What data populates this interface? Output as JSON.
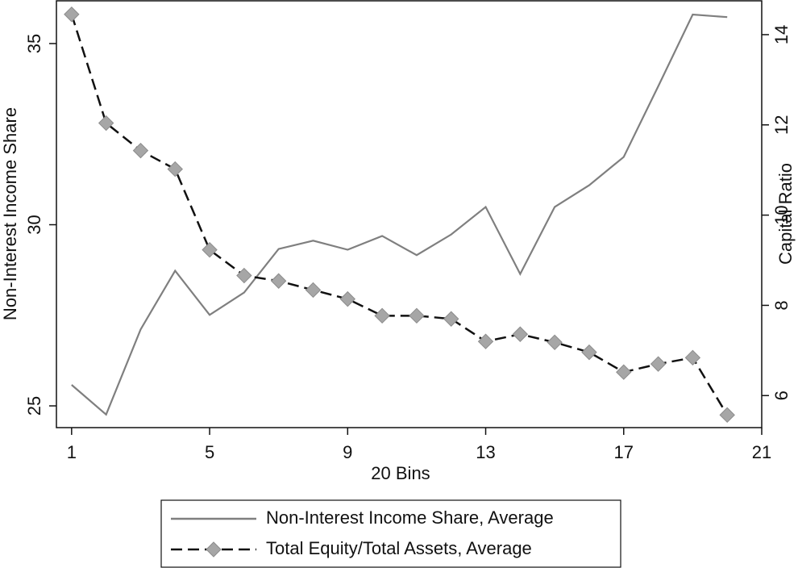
{
  "chart_data": {
    "type": "line",
    "xlabel": "20 Bins",
    "ylabel": "Non-Interest Income Share",
    "y2label": "Capital Ratio",
    "x": [
      1,
      2,
      3,
      4,
      5,
      6,
      7,
      8,
      9,
      10,
      11,
      12,
      13,
      14,
      15,
      16,
      17,
      18,
      19,
      20
    ],
    "xlim": [
      0.56,
      21
    ],
    "xticks": [
      1,
      5,
      9,
      13,
      17,
      21
    ],
    "ylim": [
      24.4,
      36.18
    ],
    "yticks": [
      25,
      30,
      35
    ],
    "y2lim": [
      5.29,
      14.75
    ],
    "y2ticks": [
      6,
      8,
      10,
      12,
      14
    ],
    "legend": "bottom",
    "series": [
      {
        "name": "Non-Interest Income Share, Average",
        "color": "#7f7f7f",
        "dashed": false,
        "marker": "none",
        "values": [
          25.58,
          24.76,
          27.11,
          28.73,
          27.51,
          28.13,
          29.33,
          29.56,
          29.31,
          29.69,
          29.16,
          29.73,
          30.49,
          28.64,
          30.49,
          31.09,
          31.87,
          33.82,
          35.8,
          35.73
        ]
      },
      {
        "name": "Total Equity/Total Assets, Average",
        "color": "#111111",
        "dashed": true,
        "marker": "diamond",
        "axis": "y2",
        "values": [
          14.45,
          12.04,
          11.43,
          11.02,
          9.23,
          8.66,
          8.54,
          8.34,
          8.14,
          7.77,
          7.77,
          7.7,
          7.2,
          7.36,
          7.18,
          6.96,
          6.52,
          6.7,
          6.84,
          5.57
        ]
      }
    ]
  }
}
